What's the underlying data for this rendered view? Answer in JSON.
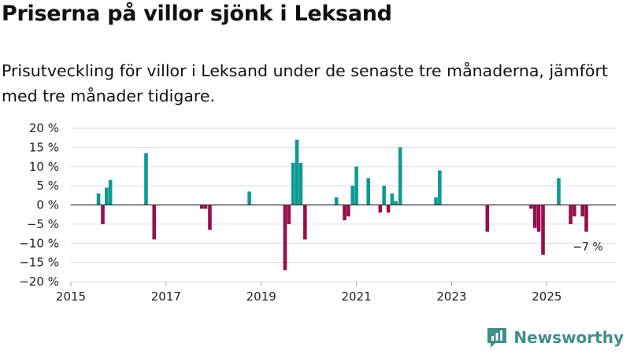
{
  "header": {
    "title": "Priserna på villor sjönk i Leksand",
    "subtitle": "Prisutveckling för villor i Leksand under de senaste tre månaderna, jämfört med tre månader tidigare."
  },
  "brand": {
    "name": "Newsworthy"
  },
  "colors": {
    "positive": "#0d9a94",
    "negative": "#990f4b",
    "grid": "#dddddd",
    "zero": "#333333",
    "brand": "#3f8f8a"
  },
  "chart_data": {
    "type": "bar",
    "title": "Priserna på villor sjönk i Leksand",
    "xlabel": "",
    "ylabel": "",
    "ylim": [
      -20,
      20
    ],
    "y_ticks": [
      20,
      15,
      10,
      5,
      0,
      -5,
      -10,
      -15,
      -20
    ],
    "y_tick_labels": [
      "20 %",
      "15 %",
      "10 %",
      "5 %",
      "0 %",
      "−5 %",
      "−10 %",
      "−15 %",
      "−20 %"
    ],
    "x_range": [
      2015.0,
      2026.45
    ],
    "x_ticks": [
      2015,
      2017,
      2019,
      2021,
      2023,
      2025
    ],
    "x_tick_labels": [
      "2015",
      "2017",
      "2019",
      "2021",
      "2023",
      "2025"
    ],
    "grid": true,
    "series": [
      {
        "name": "Prisutveckling",
        "x": [
          2015.58,
          2015.67,
          2015.75,
          2015.83,
          2016.58,
          2016.75,
          2017.75,
          2017.83,
          2017.92,
          2018.75,
          2019.5,
          2019.58,
          2019.67,
          2019.75,
          2019.83,
          2019.92,
          2020.58,
          2020.75,
          2020.83,
          2020.92,
          2021.0,
          2021.25,
          2021.5,
          2021.58,
          2021.67,
          2021.75,
          2021.83,
          2021.92,
          2022.67,
          2022.75,
          2023.75,
          2024.67,
          2024.75,
          2024.83,
          2024.92,
          2025.25,
          2025.5,
          2025.58,
          2025.75,
          2025.83
        ],
        "values": [
          3,
          -5,
          4.5,
          6.5,
          13.5,
          -9,
          -1,
          -1,
          -6.5,
          3.5,
          -17,
          -5,
          11,
          17,
          11,
          -9,
          2,
          -4,
          -3,
          5,
          10,
          7,
          -2,
          5,
          -2,
          3,
          1,
          15,
          2,
          9,
          -7,
          -1,
          -6,
          -7,
          -13,
          7,
          -5,
          -3,
          -3,
          -7
        ]
      }
    ],
    "annotations": [
      {
        "x": 2025.83,
        "value": -7,
        "text": "−7 %"
      }
    ]
  }
}
